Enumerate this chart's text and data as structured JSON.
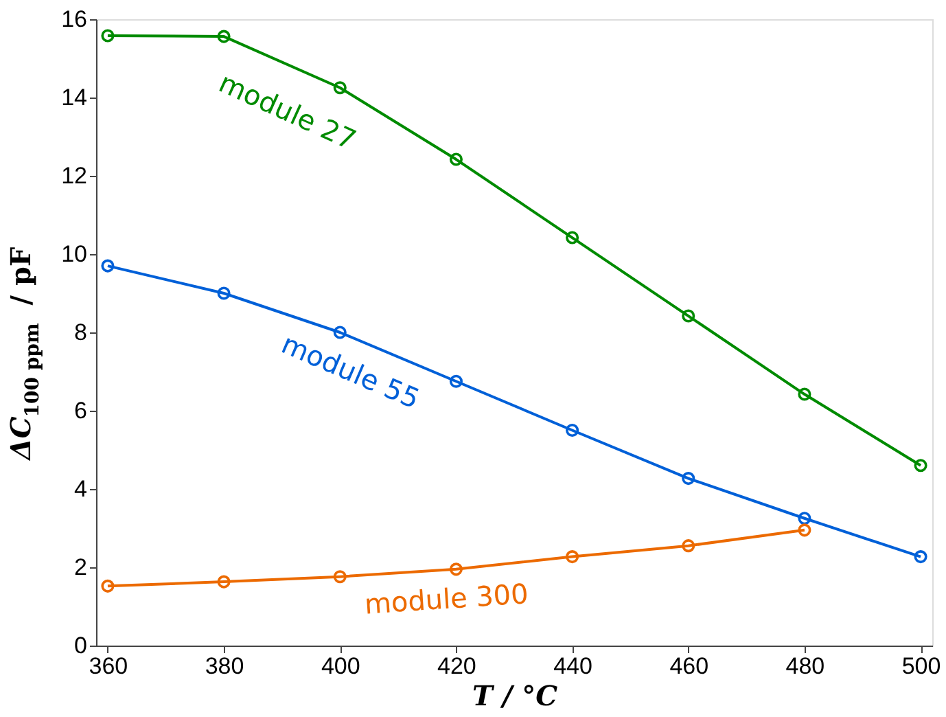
{
  "chart_data": {
    "type": "line",
    "xlabel": "T / °C",
    "ylabel": "ΔC$_{100 ppm}$ / pF",
    "x": [
      360,
      380,
      400,
      420,
      440,
      460,
      480,
      500
    ],
    "series": [
      {
        "name": "module 27",
        "color": "#008b00",
        "values": [
          15.58,
          15.56,
          14.25,
          12.42,
          10.42,
          8.42,
          6.42,
          4.6
        ]
      },
      {
        "name": "module 55",
        "color": "#0060d8",
        "values": [
          9.7,
          9.0,
          8.0,
          6.75,
          5.5,
          4.27,
          3.25,
          2.27
        ]
      },
      {
        "name": "module 300",
        "color": "#ec6a00",
        "values": [
          1.52,
          1.63,
          1.76,
          1.95,
          2.27,
          2.55,
          2.95,
          null
        ]
      }
    ],
    "xlim": [
      358,
      502
    ],
    "ylim": [
      0,
      16
    ],
    "xticks": [
      360,
      380,
      400,
      420,
      440,
      460,
      480,
      500
    ],
    "yticks": [
      0,
      2,
      4,
      6,
      8,
      10,
      12,
      14,
      16
    ],
    "grid": false,
    "marker": "circle",
    "line_style": "solid"
  }
}
